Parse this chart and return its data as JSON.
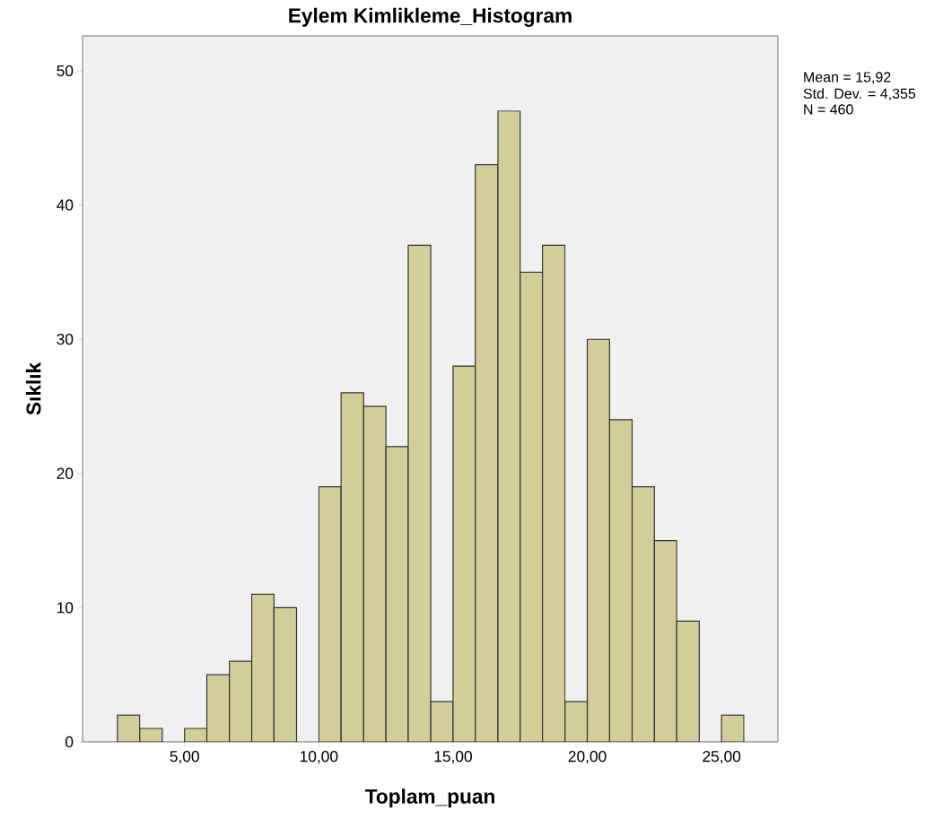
{
  "chart_data": {
    "type": "histogram",
    "title": "Eylem Kimlikleme_Histogram",
    "xlabel": "Toplam_puan",
    "ylabel": "Sıklık",
    "bins": [
      2.5,
      3.33,
      4.17,
      5,
      5.83,
      6.67,
      7.5,
      8.33,
      9.17,
      10,
      10.83,
      11.67,
      12.5,
      13.33,
      14.17,
      15,
      15.83,
      16.67,
      17.5,
      18.33,
      19.17,
      20,
      20.83,
      21.67,
      22.5,
      23.33,
      24.17,
      25,
      25.83
    ],
    "values": [
      2,
      1,
      0,
      1,
      5,
      6,
      11,
      10,
      0,
      19,
      26,
      25,
      22,
      37,
      3,
      28,
      43,
      47,
      35,
      37,
      3,
      30,
      24,
      19,
      15,
      9,
      0,
      2
    ],
    "color": "#d3ce99",
    "xlim": [
      1.2,
      27.1
    ],
    "ylim": [
      0,
      52.6
    ],
    "xticks": [
      {
        "value": 5,
        "label": "5,00"
      },
      {
        "value": 10,
        "label": "10,00"
      },
      {
        "value": 15,
        "label": "15,00"
      },
      {
        "value": 20,
        "label": "20,00"
      },
      {
        "value": 25,
        "label": "25,00"
      }
    ],
    "yticks": [
      0,
      10,
      20,
      30,
      40,
      50
    ],
    "grid": false,
    "annotations": [
      "Mean = 15,92",
      "Std. Dev. = 4,355",
      "N = 460"
    ]
  }
}
